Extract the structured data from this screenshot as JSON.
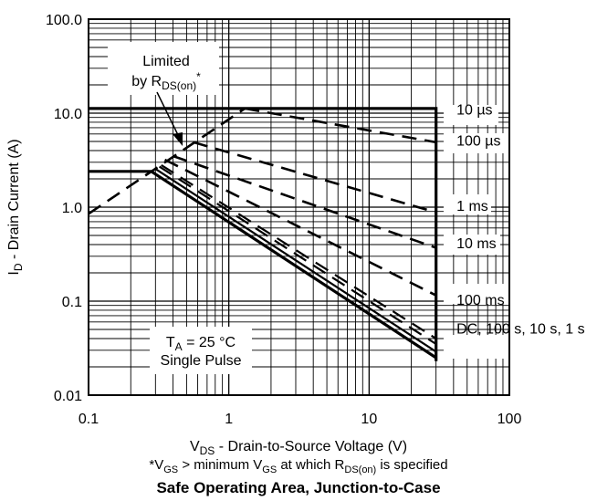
{
  "chart_data": {
    "type": "line",
    "title": "Safe Operating Area, Junction-to-Case",
    "xlabel": {
      "main": "V",
      "sub": "DS",
      "rest": " - Drain-to-Source Voltage (V)"
    },
    "ylabel": {
      "main": "I",
      "sub": "D",
      "rest": " - Drain Current (A)"
    },
    "footnote": {
      "p1": "*V",
      "s1": "GS",
      "p2": " > minimum V",
      "s2": "GS",
      "p3": " at which R",
      "s3": "DS(on)",
      "p4": " is specified"
    },
    "x_scale": "log",
    "y_scale": "log",
    "xlim": [
      0.1,
      100
    ],
    "ylim": [
      0.01,
      100
    ],
    "grid": true,
    "x_ticks": [
      {
        "value": 0.1,
        "label": "0.1"
      },
      {
        "value": 1,
        "label": "1"
      },
      {
        "value": 10,
        "label": "10"
      },
      {
        "value": 100,
        "label": "100"
      }
    ],
    "y_ticks": [
      {
        "value": 0.01,
        "label": "0.01"
      },
      {
        "value": 0.1,
        "label": "0.1"
      },
      {
        "value": 1,
        "label": "1.0"
      },
      {
        "value": 10,
        "label": "10.0"
      },
      {
        "value": 100,
        "label": "100.0"
      }
    ],
    "series": [
      {
        "name": "10 µs",
        "style": "solid",
        "width": 3.2,
        "points": [
          [
            0.1,
            11.2
          ],
          [
            30,
            11.2
          ],
          [
            30,
            0.023
          ]
        ]
      },
      {
        "name": "Limited by RDS(on)*",
        "style": "dashed",
        "width": 2.6,
        "points": [
          [
            0.1,
            0.85
          ],
          [
            1.3,
            11.2
          ]
        ]
      },
      {
        "name": "100 µs",
        "style": "dashed",
        "width": 2.6,
        "points": [
          [
            1.3,
            11.2
          ],
          [
            30,
            4.9
          ]
        ]
      },
      {
        "name": "1 ms",
        "style": "dashed",
        "width": 2.6,
        "points": [
          [
            0.56,
            4.9
          ],
          [
            30,
            0.88
          ]
        ]
      },
      {
        "name": "10 ms",
        "style": "dashed",
        "width": 2.6,
        "points": [
          [
            0.4,
            3.5
          ],
          [
            30,
            0.37
          ]
        ]
      },
      {
        "name": "100 ms",
        "style": "dashed",
        "width": 2.6,
        "points": [
          [
            0.35,
            3.2
          ],
          [
            30,
            0.115
          ]
        ]
      },
      {
        "name": "DC, 100 s, 10 s, 1 s",
        "style": "dashed",
        "width": 2.2,
        "points": [
          [
            0.33,
            2.8
          ],
          [
            30,
            0.04
          ]
        ]
      },
      {
        "name": "DC, 100 s, 10 s, 1 s",
        "style": "dashed",
        "width": 2.2,
        "points": [
          [
            0.32,
            2.7
          ],
          [
            30,
            0.035
          ]
        ]
      },
      {
        "name": "DC, 100 s, 10 s, 1 s",
        "style": "solid",
        "width": 2.2,
        "points": [
          [
            0.3,
            2.55
          ],
          [
            30,
            0.029
          ]
        ]
      },
      {
        "name": "DC, 100 s, 10 s, 1 s",
        "style": "solid",
        "width": 3.2,
        "points": [
          [
            0.1,
            2.4
          ],
          [
            0.28,
            2.4
          ],
          [
            30,
            0.025
          ]
        ]
      }
    ],
    "series_labels": [
      {
        "text": "10 µs",
        "x": 42,
        "y": 11.0
      },
      {
        "text": "100 µs",
        "x": 42,
        "y": 5.2
      },
      {
        "text": "1 ms",
        "x": 42,
        "y": 1.05
      },
      {
        "text": "10 ms",
        "x": 42,
        "y": 0.42
      },
      {
        "text": "100 ms",
        "x": 42,
        "y": 0.105
      },
      {
        "text": "DC, 100 s, 10 s, 1 s",
        "x": 42,
        "y": 0.052
      }
    ],
    "annotations": {
      "limited_line1": "Limited",
      "limited_line2_prefix": "by R",
      "limited_line2_sub": "DS(on)",
      "limited_line2_suffix": "*",
      "ta_prefix": "T",
      "ta_sub": "A",
      "ta_suffix": " = 25 °C",
      "pulse": "Single Pulse"
    }
  }
}
